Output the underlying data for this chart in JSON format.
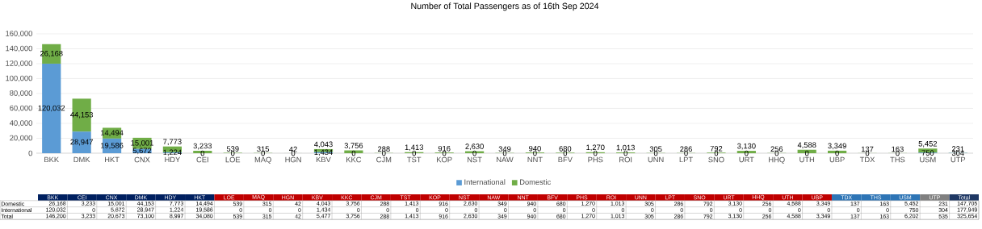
{
  "chart_data": [
    {
      "type": "bar",
      "title": "Number of Total Passengers as of 16th Sep 2024",
      "stacked": true,
      "categories": [
        "BKK",
        "DMK",
        "HKT",
        "CNX",
        "HDY",
        "CEI",
        "LOE",
        "MAQ",
        "HGN",
        "KBV",
        "KKC",
        "CJM",
        "TST",
        "KOP",
        "NST",
        "NAW",
        "NNT",
        "BFV",
        "PHS",
        "ROI",
        "UNN",
        "LPT",
        "SNO",
        "URT",
        "HHQ",
        "UTH",
        "UBP",
        "TDX",
        "THS",
        "USM",
        "UTP"
      ],
      "series": [
        {
          "name": "International",
          "color": "#5b9bd5",
          "values": [
            120032,
            28947,
            19586,
            5672,
            1224,
            0,
            0,
            0,
            0,
            1434,
            0,
            0,
            0,
            0,
            0,
            0,
            0,
            0,
            0,
            0,
            0,
            0,
            0,
            0,
            0,
            0,
            0,
            0,
            0,
            750,
            304
          ],
          "value_labels": [
            "120,032",
            "28,947",
            "19,586",
            "5,672",
            "1,224",
            "0",
            "0",
            "0",
            "0",
            "1,434",
            "0",
            "0",
            "0",
            "0",
            "0",
            "0",
            "0",
            "0",
            "0",
            "0",
            "0",
            "0",
            "0",
            "0",
            "0",
            "0",
            "0",
            "0",
            "0",
            "750",
            "304"
          ]
        },
        {
          "name": "Domestic",
          "color": "#70ad47",
          "values": [
            26168,
            44153,
            14494,
            15001,
            7773,
            3233,
            539,
            315,
            42,
            4043,
            3756,
            288,
            1413,
            916,
            2630,
            349,
            940,
            680,
            1270,
            1013,
            305,
            286,
            792,
            3130,
            256,
            4588,
            3349,
            137,
            163,
            5452,
            231
          ],
          "value_labels": [
            "26,168",
            "44,153",
            "14,494",
            "15,001",
            "7,773",
            "3,233",
            "539",
            "315",
            "42",
            "4,043",
            "3,756",
            "288",
            "1,413",
            "916",
            "2,630",
            "349",
            "940",
            "680",
            "1,270",
            "1,013",
            "305",
            "286",
            "792",
            "3,130",
            "256",
            "4,588",
            "3,349",
            "137",
            "163",
            "5,452",
            "231"
          ]
        }
      ],
      "ylim": [
        0,
        160000
      ],
      "yticks": [
        {
          "value": 0,
          "label": "0"
        },
        {
          "value": 20000,
          "label": "20,000"
        },
        {
          "value": 40000,
          "label": "40,000"
        },
        {
          "value": 60000,
          "label": "60,000"
        },
        {
          "value": 80000,
          "label": "80,000"
        },
        {
          "value": 100000,
          "label": "100,000"
        },
        {
          "value": 120000,
          "label": "120,000"
        },
        {
          "value": 140000,
          "label": "140,000"
        },
        {
          "value": 160000,
          "label": "160,000"
        }
      ],
      "grid": "y",
      "legend": "bottom"
    },
    {
      "type": "other",
      "categories": [
        "BKK",
        "CEI",
        "CNX",
        "DMK",
        "HDY",
        "HKT",
        "LOE",
        "MAQ",
        "HGN",
        "KBV",
        "KKC",
        "CJM",
        "TST",
        "KOP",
        "NST",
        "NAW",
        "NNT",
        "BFV",
        "PHS",
        "ROI",
        "UNN",
        "LPT",
        "SNO",
        "URT",
        "HHQ",
        "UTH",
        "UBP",
        "TDX",
        "THS",
        "USM",
        "UTP",
        "Total"
      ],
      "colors": [
        "#002060",
        "#002060",
        "#002060",
        "#002060",
        "#002060",
        "#002060",
        "#c00000",
        "#c00000",
        "#c00000",
        "#c00000",
        "#c00000",
        "#c00000",
        "#c00000",
        "#c00000",
        "#c00000",
        "#c00000",
        "#c00000",
        "#c00000",
        "#c00000",
        "#c00000",
        "#c00000",
        "#c00000",
        "#c00000",
        "#c00000",
        "#c00000",
        "#c00000",
        "#c00000",
        "#2e75b6",
        "#2e75b6",
        "#2e75b6",
        "#808080",
        "#1f3864"
      ],
      "y_categories": [
        "Domestic",
        "International",
        "Total"
      ],
      "data_labels": true,
      "cell_labels": [
        [
          "26,168",
          "3,233",
          "15,001",
          "44,153",
          "7,773",
          "14,494",
          "539",
          "315",
          "42",
          "4,043",
          "3,756",
          "288",
          "1,413",
          "916",
          "2,630",
          "349",
          "940",
          "680",
          "1,270",
          "1,013",
          "305",
          "286",
          "792",
          "3,130",
          "256",
          "4,588",
          "3,349",
          "137",
          "163",
          "5,452",
          "231",
          "147,705"
        ],
        [
          "120,032",
          "0",
          "5,672",
          "28,947",
          "1,224",
          "19,586",
          "0",
          "0",
          "0",
          "1,434",
          "0",
          "0",
          "0",
          "0",
          "0",
          "0",
          "0",
          "0",
          "0",
          "0",
          "0",
          "0",
          "0",
          "0",
          "0",
          "0",
          "0",
          "0",
          "0",
          "750",
          "304",
          "177,949"
        ],
        [
          "146,200",
          "3,233",
          "20,673",
          "73,100",
          "8,997",
          "34,080",
          "539",
          "315",
          "42",
          "5,477",
          "3,756",
          "288",
          "1,413",
          "916",
          "2,630",
          "349",
          "940",
          "680",
          "1,270",
          "1,013",
          "305",
          "286",
          "792",
          "3,130",
          "256",
          "4,588",
          "3,349",
          "137",
          "163",
          "6,202",
          "535",
          "325,654"
        ]
      ]
    }
  ]
}
